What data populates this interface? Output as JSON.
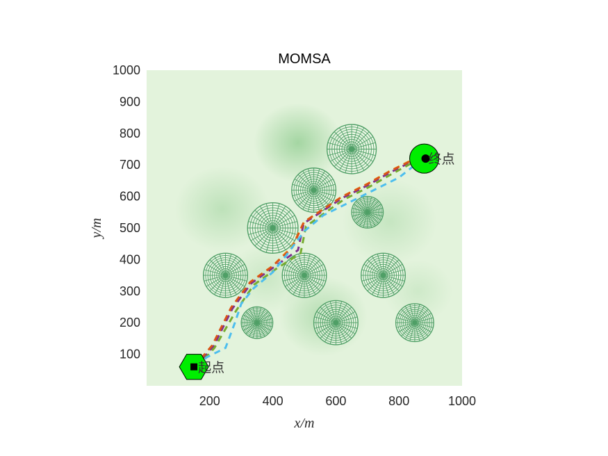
{
  "chart_data": {
    "type": "line",
    "title": "MOMSA",
    "xlabel": "x/m",
    "ylabel": "y/m",
    "xlim": [
      0,
      1000
    ],
    "ylim": [
      0,
      1000
    ],
    "xticks": [
      200,
      400,
      600,
      800,
      1000
    ],
    "yticks": [
      100,
      200,
      300,
      400,
      500,
      600,
      700,
      800,
      900,
      1000
    ],
    "grid": false,
    "legend": null,
    "background": {
      "type": "terrain-colormap",
      "palette": "green",
      "light": "#e3f3dc",
      "dark": "#8fcc8f"
    },
    "terrain_peaks": [
      {
        "x": 480,
        "y": 770,
        "r": 140,
        "strength": 0.75
      },
      {
        "x": 240,
        "y": 560,
        "r": 150,
        "strength": 0.45
      },
      {
        "x": 560,
        "y": 220,
        "r": 140,
        "strength": 0.55
      },
      {
        "x": 770,
        "y": 520,
        "r": 150,
        "strength": 0.35
      },
      {
        "x": 380,
        "y": 340,
        "r": 120,
        "strength": 0.3
      },
      {
        "x": 860,
        "y": 300,
        "r": 110,
        "strength": 0.25
      }
    ],
    "obstacles": [
      {
        "x": 650,
        "y": 750,
        "r": 78
      },
      {
        "x": 530,
        "y": 620,
        "r": 70
      },
      {
        "x": 700,
        "y": 550,
        "r": 50
      },
      {
        "x": 400,
        "y": 500,
        "r": 80
      },
      {
        "x": 250,
        "y": 350,
        "r": 70
      },
      {
        "x": 500,
        "y": 350,
        "r": 70
      },
      {
        "x": 750,
        "y": 350,
        "r": 70
      },
      {
        "x": 350,
        "y": 200,
        "r": 50
      },
      {
        "x": 600,
        "y": 200,
        "r": 70
      },
      {
        "x": 850,
        "y": 200,
        "r": 60
      }
    ],
    "start": {
      "x": 150,
      "y": 60,
      "label": "起点",
      "marker": "hexagon",
      "color": "#00ee00"
    },
    "goal": {
      "x": 880,
      "y": 720,
      "label": "终点",
      "marker": "circle",
      "color": "#00ee00"
    },
    "series": [
      {
        "name": "path-orange",
        "color": "#edb120",
        "points": [
          [
            150,
            60
          ],
          [
            210,
            130
          ],
          [
            270,
            250
          ],
          [
            330,
            330
          ],
          [
            400,
            380
          ],
          [
            460,
            440
          ],
          [
            500,
            520
          ],
          [
            560,
            560
          ],
          [
            620,
            600
          ],
          [
            700,
            640
          ],
          [
            770,
            680
          ],
          [
            850,
            720
          ],
          [
            880,
            720
          ]
        ]
      },
      {
        "name": "path-purple",
        "color": "#7e2f8e",
        "points": [
          [
            155,
            60
          ],
          [
            212,
            125
          ],
          [
            272,
            245
          ],
          [
            332,
            325
          ],
          [
            402,
            375
          ],
          [
            480,
            430
          ],
          [
            498,
            515
          ],
          [
            560,
            555
          ],
          [
            620,
            595
          ],
          [
            700,
            635
          ],
          [
            770,
            675
          ],
          [
            850,
            715
          ],
          [
            880,
            720
          ]
        ]
      },
      {
        "name": "path-green",
        "color": "#77ac30",
        "points": [
          [
            160,
            60
          ],
          [
            215,
            120
          ],
          [
            285,
            240
          ],
          [
            340,
            320
          ],
          [
            410,
            370
          ],
          [
            488,
            420
          ],
          [
            505,
            505
          ],
          [
            565,
            548
          ],
          [
            625,
            590
          ],
          [
            705,
            630
          ],
          [
            775,
            670
          ],
          [
            852,
            712
          ],
          [
            880,
            720
          ]
        ]
      },
      {
        "name": "path-brown",
        "color": "#d95319",
        "points": [
          [
            150,
            60
          ],
          [
            208,
            128
          ],
          [
            268,
            248
          ],
          [
            328,
            328
          ],
          [
            398,
            378
          ],
          [
            462,
            438
          ],
          [
            498,
            518
          ],
          [
            558,
            558
          ],
          [
            618,
            598
          ],
          [
            698,
            638
          ],
          [
            768,
            678
          ],
          [
            848,
            718
          ],
          [
            880,
            720
          ]
        ]
      },
      {
        "name": "path-blue",
        "color": "#4dbeee",
        "points": [
          [
            160,
            60
          ],
          [
            190,
            90
          ],
          [
            250,
            120
          ],
          [
            280,
            200
          ],
          [
            300,
            260
          ],
          [
            340,
            310
          ],
          [
            400,
            360
          ],
          [
            440,
            410
          ],
          [
            500,
            490
          ],
          [
            560,
            540
          ],
          [
            640,
            580
          ],
          [
            720,
            620
          ],
          [
            800,
            660
          ],
          [
            870,
            715
          ]
        ]
      }
    ]
  }
}
